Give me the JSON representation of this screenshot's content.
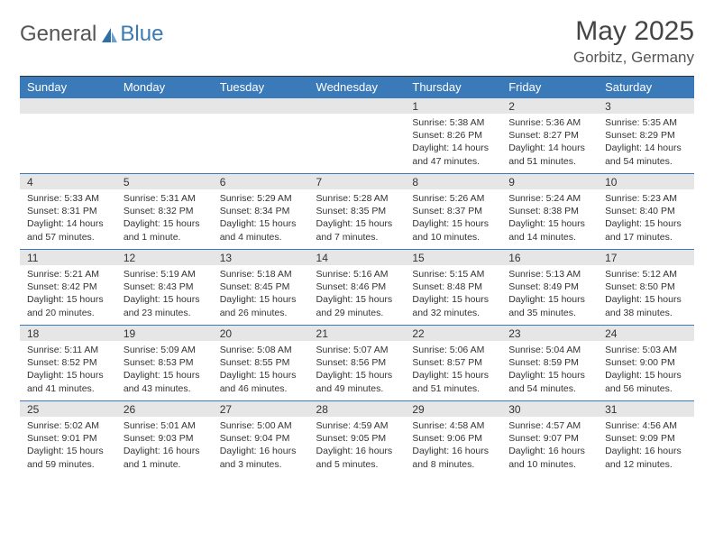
{
  "brand": {
    "part1": "General",
    "part2": "Blue",
    "logo_color": "#2f6fa8"
  },
  "title": "May 2025",
  "location": "Gorbitz, Germany",
  "colors": {
    "header_bg": "#3a7ab8",
    "header_fg": "#ffffff",
    "band_bg": "#e6e6e6",
    "band_border": "#3a7ab8",
    "text": "#333333",
    "background": "#ffffff"
  },
  "typography": {
    "title_fontsize_pt": 22,
    "location_fontsize_pt": 13,
    "day_header_fontsize_pt": 10,
    "daynum_fontsize_pt": 9,
    "details_fontsize_pt": 8
  },
  "day_headers": [
    "Sunday",
    "Monday",
    "Tuesday",
    "Wednesday",
    "Thursday",
    "Friday",
    "Saturday"
  ],
  "weeks": [
    [
      {
        "n": "",
        "sunrise": "",
        "sunset": "",
        "daylight": ""
      },
      {
        "n": "",
        "sunrise": "",
        "sunset": "",
        "daylight": ""
      },
      {
        "n": "",
        "sunrise": "",
        "sunset": "",
        "daylight": ""
      },
      {
        "n": "",
        "sunrise": "",
        "sunset": "",
        "daylight": ""
      },
      {
        "n": "1",
        "sunrise": "Sunrise: 5:38 AM",
        "sunset": "Sunset: 8:26 PM",
        "daylight": "Daylight: 14 hours and 47 minutes."
      },
      {
        "n": "2",
        "sunrise": "Sunrise: 5:36 AM",
        "sunset": "Sunset: 8:27 PM",
        "daylight": "Daylight: 14 hours and 51 minutes."
      },
      {
        "n": "3",
        "sunrise": "Sunrise: 5:35 AM",
        "sunset": "Sunset: 8:29 PM",
        "daylight": "Daylight: 14 hours and 54 minutes."
      }
    ],
    [
      {
        "n": "4",
        "sunrise": "Sunrise: 5:33 AM",
        "sunset": "Sunset: 8:31 PM",
        "daylight": "Daylight: 14 hours and 57 minutes."
      },
      {
        "n": "5",
        "sunrise": "Sunrise: 5:31 AM",
        "sunset": "Sunset: 8:32 PM",
        "daylight": "Daylight: 15 hours and 1 minute."
      },
      {
        "n": "6",
        "sunrise": "Sunrise: 5:29 AM",
        "sunset": "Sunset: 8:34 PM",
        "daylight": "Daylight: 15 hours and 4 minutes."
      },
      {
        "n": "7",
        "sunrise": "Sunrise: 5:28 AM",
        "sunset": "Sunset: 8:35 PM",
        "daylight": "Daylight: 15 hours and 7 minutes."
      },
      {
        "n": "8",
        "sunrise": "Sunrise: 5:26 AM",
        "sunset": "Sunset: 8:37 PM",
        "daylight": "Daylight: 15 hours and 10 minutes."
      },
      {
        "n": "9",
        "sunrise": "Sunrise: 5:24 AM",
        "sunset": "Sunset: 8:38 PM",
        "daylight": "Daylight: 15 hours and 14 minutes."
      },
      {
        "n": "10",
        "sunrise": "Sunrise: 5:23 AM",
        "sunset": "Sunset: 8:40 PM",
        "daylight": "Daylight: 15 hours and 17 minutes."
      }
    ],
    [
      {
        "n": "11",
        "sunrise": "Sunrise: 5:21 AM",
        "sunset": "Sunset: 8:42 PM",
        "daylight": "Daylight: 15 hours and 20 minutes."
      },
      {
        "n": "12",
        "sunrise": "Sunrise: 5:19 AM",
        "sunset": "Sunset: 8:43 PM",
        "daylight": "Daylight: 15 hours and 23 minutes."
      },
      {
        "n": "13",
        "sunrise": "Sunrise: 5:18 AM",
        "sunset": "Sunset: 8:45 PM",
        "daylight": "Daylight: 15 hours and 26 minutes."
      },
      {
        "n": "14",
        "sunrise": "Sunrise: 5:16 AM",
        "sunset": "Sunset: 8:46 PM",
        "daylight": "Daylight: 15 hours and 29 minutes."
      },
      {
        "n": "15",
        "sunrise": "Sunrise: 5:15 AM",
        "sunset": "Sunset: 8:48 PM",
        "daylight": "Daylight: 15 hours and 32 minutes."
      },
      {
        "n": "16",
        "sunrise": "Sunrise: 5:13 AM",
        "sunset": "Sunset: 8:49 PM",
        "daylight": "Daylight: 15 hours and 35 minutes."
      },
      {
        "n": "17",
        "sunrise": "Sunrise: 5:12 AM",
        "sunset": "Sunset: 8:50 PM",
        "daylight": "Daylight: 15 hours and 38 minutes."
      }
    ],
    [
      {
        "n": "18",
        "sunrise": "Sunrise: 5:11 AM",
        "sunset": "Sunset: 8:52 PM",
        "daylight": "Daylight: 15 hours and 41 minutes."
      },
      {
        "n": "19",
        "sunrise": "Sunrise: 5:09 AM",
        "sunset": "Sunset: 8:53 PM",
        "daylight": "Daylight: 15 hours and 43 minutes."
      },
      {
        "n": "20",
        "sunrise": "Sunrise: 5:08 AM",
        "sunset": "Sunset: 8:55 PM",
        "daylight": "Daylight: 15 hours and 46 minutes."
      },
      {
        "n": "21",
        "sunrise": "Sunrise: 5:07 AM",
        "sunset": "Sunset: 8:56 PM",
        "daylight": "Daylight: 15 hours and 49 minutes."
      },
      {
        "n": "22",
        "sunrise": "Sunrise: 5:06 AM",
        "sunset": "Sunset: 8:57 PM",
        "daylight": "Daylight: 15 hours and 51 minutes."
      },
      {
        "n": "23",
        "sunrise": "Sunrise: 5:04 AM",
        "sunset": "Sunset: 8:59 PM",
        "daylight": "Daylight: 15 hours and 54 minutes."
      },
      {
        "n": "24",
        "sunrise": "Sunrise: 5:03 AM",
        "sunset": "Sunset: 9:00 PM",
        "daylight": "Daylight: 15 hours and 56 minutes."
      }
    ],
    [
      {
        "n": "25",
        "sunrise": "Sunrise: 5:02 AM",
        "sunset": "Sunset: 9:01 PM",
        "daylight": "Daylight: 15 hours and 59 minutes."
      },
      {
        "n": "26",
        "sunrise": "Sunrise: 5:01 AM",
        "sunset": "Sunset: 9:03 PM",
        "daylight": "Daylight: 16 hours and 1 minute."
      },
      {
        "n": "27",
        "sunrise": "Sunrise: 5:00 AM",
        "sunset": "Sunset: 9:04 PM",
        "daylight": "Daylight: 16 hours and 3 minutes."
      },
      {
        "n": "28",
        "sunrise": "Sunrise: 4:59 AM",
        "sunset": "Sunset: 9:05 PM",
        "daylight": "Daylight: 16 hours and 5 minutes."
      },
      {
        "n": "29",
        "sunrise": "Sunrise: 4:58 AM",
        "sunset": "Sunset: 9:06 PM",
        "daylight": "Daylight: 16 hours and 8 minutes."
      },
      {
        "n": "30",
        "sunrise": "Sunrise: 4:57 AM",
        "sunset": "Sunset: 9:07 PM",
        "daylight": "Daylight: 16 hours and 10 minutes."
      },
      {
        "n": "31",
        "sunrise": "Sunrise: 4:56 AM",
        "sunset": "Sunset: 9:09 PM",
        "daylight": "Daylight: 16 hours and 12 minutes."
      }
    ]
  ]
}
